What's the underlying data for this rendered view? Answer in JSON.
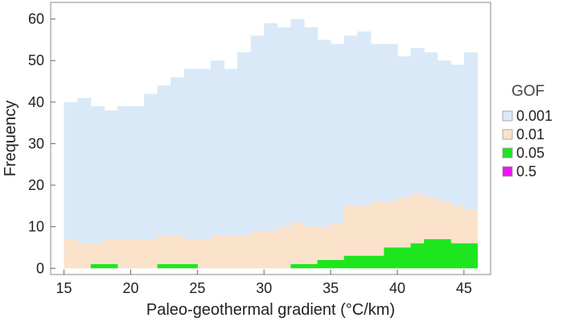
{
  "chart_data": {
    "type": "bar",
    "stacking": "overlay",
    "xlabel": "Paleo-geothermal gradient (°C/km)",
    "ylabel": "Frequency",
    "xlim": [
      14,
      47
    ],
    "ylim": [
      -1.5,
      64
    ],
    "xticks": [
      15,
      20,
      25,
      30,
      35,
      40,
      45
    ],
    "yticks": [
      0,
      10,
      20,
      30,
      40,
      50,
      60
    ],
    "bin_start": 15,
    "bin_width": 1,
    "grid": false,
    "legend": {
      "title": "GOF",
      "placement": "right",
      "entries": [
        {
          "label": "0.001",
          "color": "#d9e9f7"
        },
        {
          "label": "0.01",
          "color": "#fbe2cb"
        },
        {
          "label": "0.05",
          "color": "#1ee61e"
        },
        {
          "label": "0.5",
          "color": "#ee16ee"
        }
      ]
    },
    "series": [
      {
        "name": "0.001",
        "color": "#d9e9f7",
        "values": [
          40,
          41,
          39,
          38,
          39,
          39,
          42,
          44,
          46,
          48,
          48,
          50,
          48,
          52,
          56,
          59,
          58,
          60,
          58,
          55,
          54,
          56,
          57,
          54,
          54,
          51,
          53,
          52,
          50,
          49,
          52
        ]
      },
      {
        "name": "0.01",
        "color": "#fbe2cb",
        "values": [
          7,
          6,
          6,
          7,
          7,
          7,
          7,
          8,
          8,
          7,
          7,
          8,
          8,
          8,
          9,
          9,
          10,
          11,
          10,
          10,
          11,
          15,
          15,
          16,
          16,
          17,
          18,
          17,
          16,
          15,
          14
        ]
      },
      {
        "name": "0.05",
        "color": "#1ee61e",
        "values": [
          0,
          0,
          1,
          1,
          0,
          0,
          0,
          1,
          1,
          1,
          0,
          0,
          0,
          0,
          0,
          0,
          0,
          1,
          1,
          2,
          2,
          3,
          3,
          3,
          5,
          5,
          6,
          7,
          7,
          6,
          6
        ]
      },
      {
        "name": "0.5",
        "color": "#ee16ee",
        "values": [
          0,
          0,
          0,
          0,
          0,
          0,
          0,
          0,
          0,
          0,
          0,
          0,
          0,
          0,
          0,
          0,
          0,
          0,
          0,
          0,
          0,
          0,
          0,
          0,
          0,
          0,
          0,
          0,
          0,
          0,
          0
        ]
      }
    ]
  }
}
